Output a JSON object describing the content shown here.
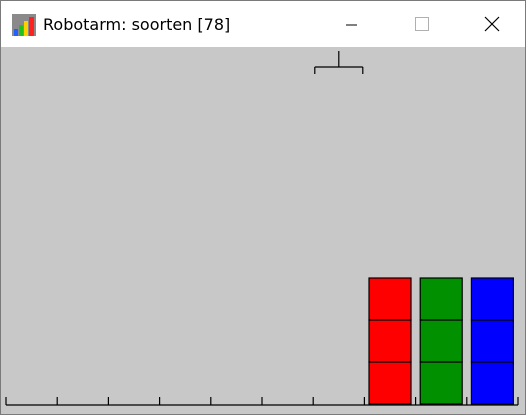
{
  "window": {
    "title": "Robotarm: soorten [78]",
    "icon": "robotarm-app-icon",
    "controls": [
      "minimize-icon",
      "maximize-icon",
      "close-icon"
    ]
  },
  "scene": {
    "background_color": "#c8c8c8",
    "slot_count": 10,
    "arm_slot": 6,
    "stacks": [
      {
        "slot": 7,
        "color": "#ff0000",
        "blocks": 3
      },
      {
        "slot": 8,
        "color": "#009000",
        "blocks": 3
      },
      {
        "slot": 9,
        "color": "#0000ff",
        "blocks": 3
      }
    ]
  }
}
